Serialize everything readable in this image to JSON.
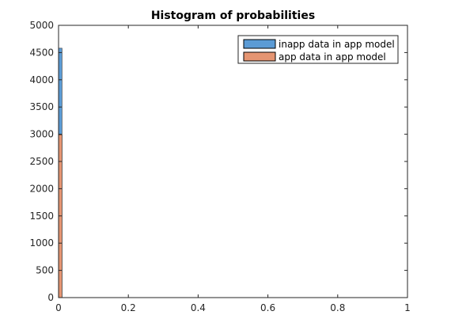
{
  "chart_data": {
    "type": "bar",
    "title": "Histogram of probabilities",
    "xlabel": "",
    "ylabel": "",
    "xlim": [
      0,
      1
    ],
    "ylim": [
      0,
      5000
    ],
    "xticks": [
      "0",
      "0.2",
      "0.4",
      "0.6",
      "0.8",
      "1"
    ],
    "yticks": [
      "0",
      "500",
      "1000",
      "1500",
      "2000",
      "2500",
      "3000",
      "3500",
      "4000",
      "4500",
      "5000"
    ],
    "bin_width": 0.01,
    "legend_position": "top-right",
    "grid": false,
    "series": [
      {
        "name": "inapp data in app model",
        "color": "#5b9bd5",
        "bins": [
          {
            "x_start": 0,
            "x_end": 0.01,
            "count": 4580
          }
        ]
      },
      {
        "name": "app data in app model",
        "color": "#e59572",
        "bins": [
          {
            "x_start": 0,
            "x_end": 0.01,
            "count": 2990
          }
        ]
      }
    ]
  }
}
